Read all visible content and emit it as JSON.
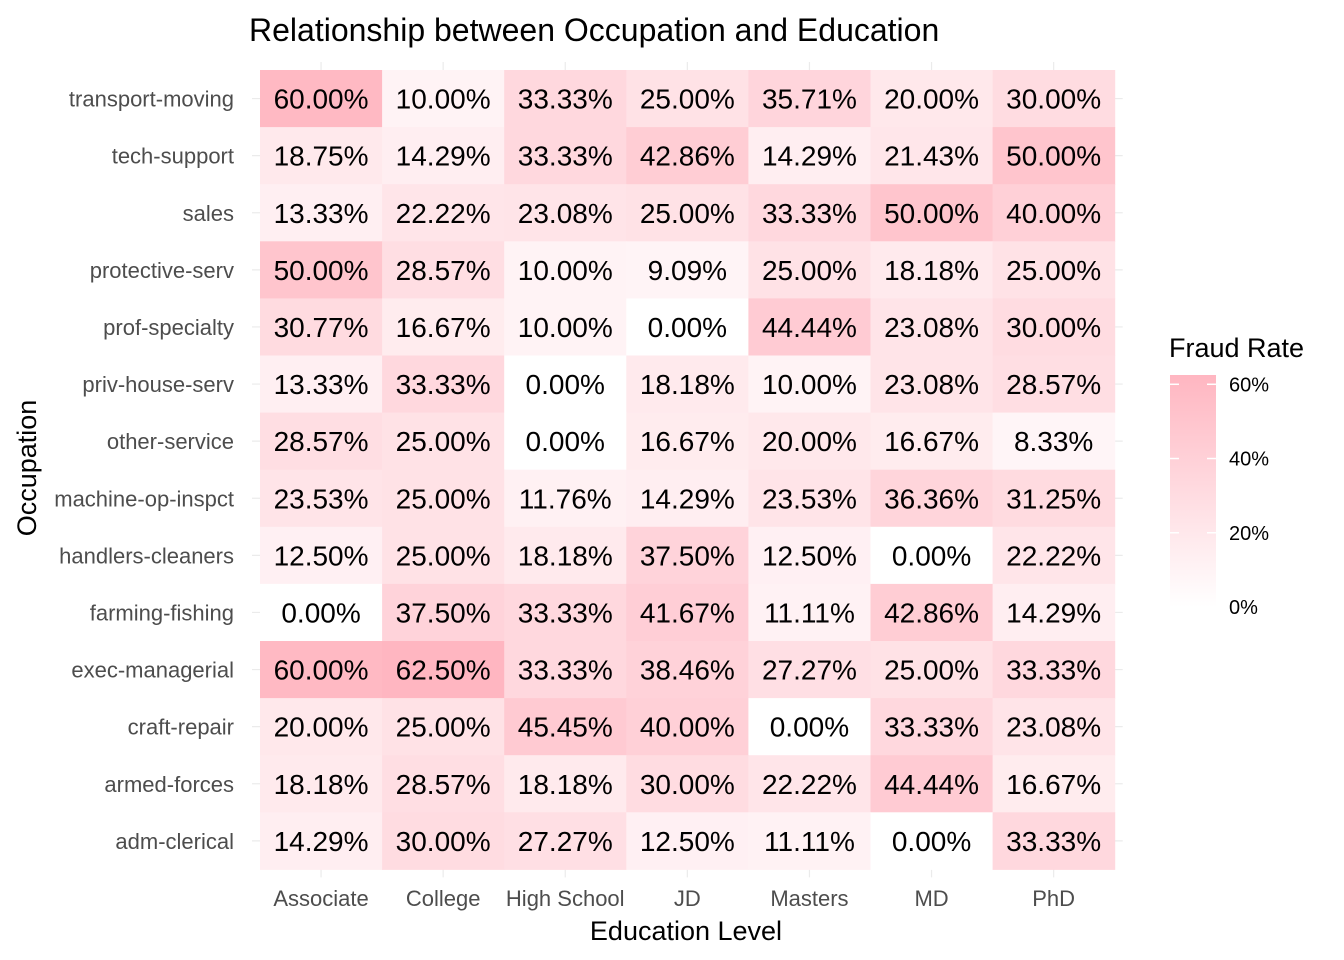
{
  "chart_data": {
    "type": "heatmap",
    "title": "Relationship between Occupation and Education",
    "xlabel": "Education Level",
    "ylabel": "Occupation",
    "x_categories": [
      "Associate",
      "College",
      "High School",
      "JD",
      "Masters",
      "MD",
      "PhD"
    ],
    "y_categories": [
      "transport-moving",
      "tech-support",
      "sales",
      "protective-serv",
      "prof-specialty",
      "priv-house-serv",
      "other-service",
      "machine-op-inspct",
      "handlers-cleaners",
      "farming-fishing",
      "exec-managerial",
      "craft-repair",
      "armed-forces",
      "adm-clerical"
    ],
    "values": [
      [
        60.0,
        10.0,
        33.33,
        25.0,
        35.71,
        20.0,
        30.0
      ],
      [
        18.75,
        14.29,
        33.33,
        42.86,
        14.29,
        21.43,
        50.0
      ],
      [
        13.33,
        22.22,
        23.08,
        25.0,
        33.33,
        50.0,
        40.0
      ],
      [
        50.0,
        28.57,
        10.0,
        9.09,
        25.0,
        18.18,
        25.0
      ],
      [
        30.77,
        16.67,
        10.0,
        0.0,
        44.44,
        23.08,
        30.0
      ],
      [
        13.33,
        33.33,
        0.0,
        18.18,
        10.0,
        23.08,
        28.57
      ],
      [
        28.57,
        25.0,
        0.0,
        16.67,
        20.0,
        16.67,
        8.33
      ],
      [
        23.53,
        25.0,
        11.76,
        14.29,
        23.53,
        36.36,
        31.25
      ],
      [
        12.5,
        25.0,
        18.18,
        37.5,
        12.5,
        0.0,
        22.22
      ],
      [
        0.0,
        37.5,
        33.33,
        41.67,
        11.11,
        42.86,
        14.29
      ],
      [
        60.0,
        62.5,
        33.33,
        38.46,
        27.27,
        25.0,
        33.33
      ],
      [
        20.0,
        25.0,
        45.45,
        40.0,
        0.0,
        33.33,
        23.08
      ],
      [
        18.18,
        28.57,
        18.18,
        30.0,
        22.22,
        44.44,
        16.67
      ],
      [
        14.29,
        30.0,
        27.27,
        12.5,
        11.11,
        0.0,
        33.33
      ]
    ],
    "value_format": "percent_2dp",
    "color_low": "#ffffff",
    "color_high": "#ffb6c1",
    "scale_range": [
      0,
      62.5
    ],
    "legend": {
      "title": "Fraud Rate",
      "ticks": [
        "0%",
        "20%",
        "40%",
        "60%"
      ],
      "tick_values": [
        0,
        20,
        40,
        60
      ],
      "position": "right"
    },
    "grid": true
  }
}
